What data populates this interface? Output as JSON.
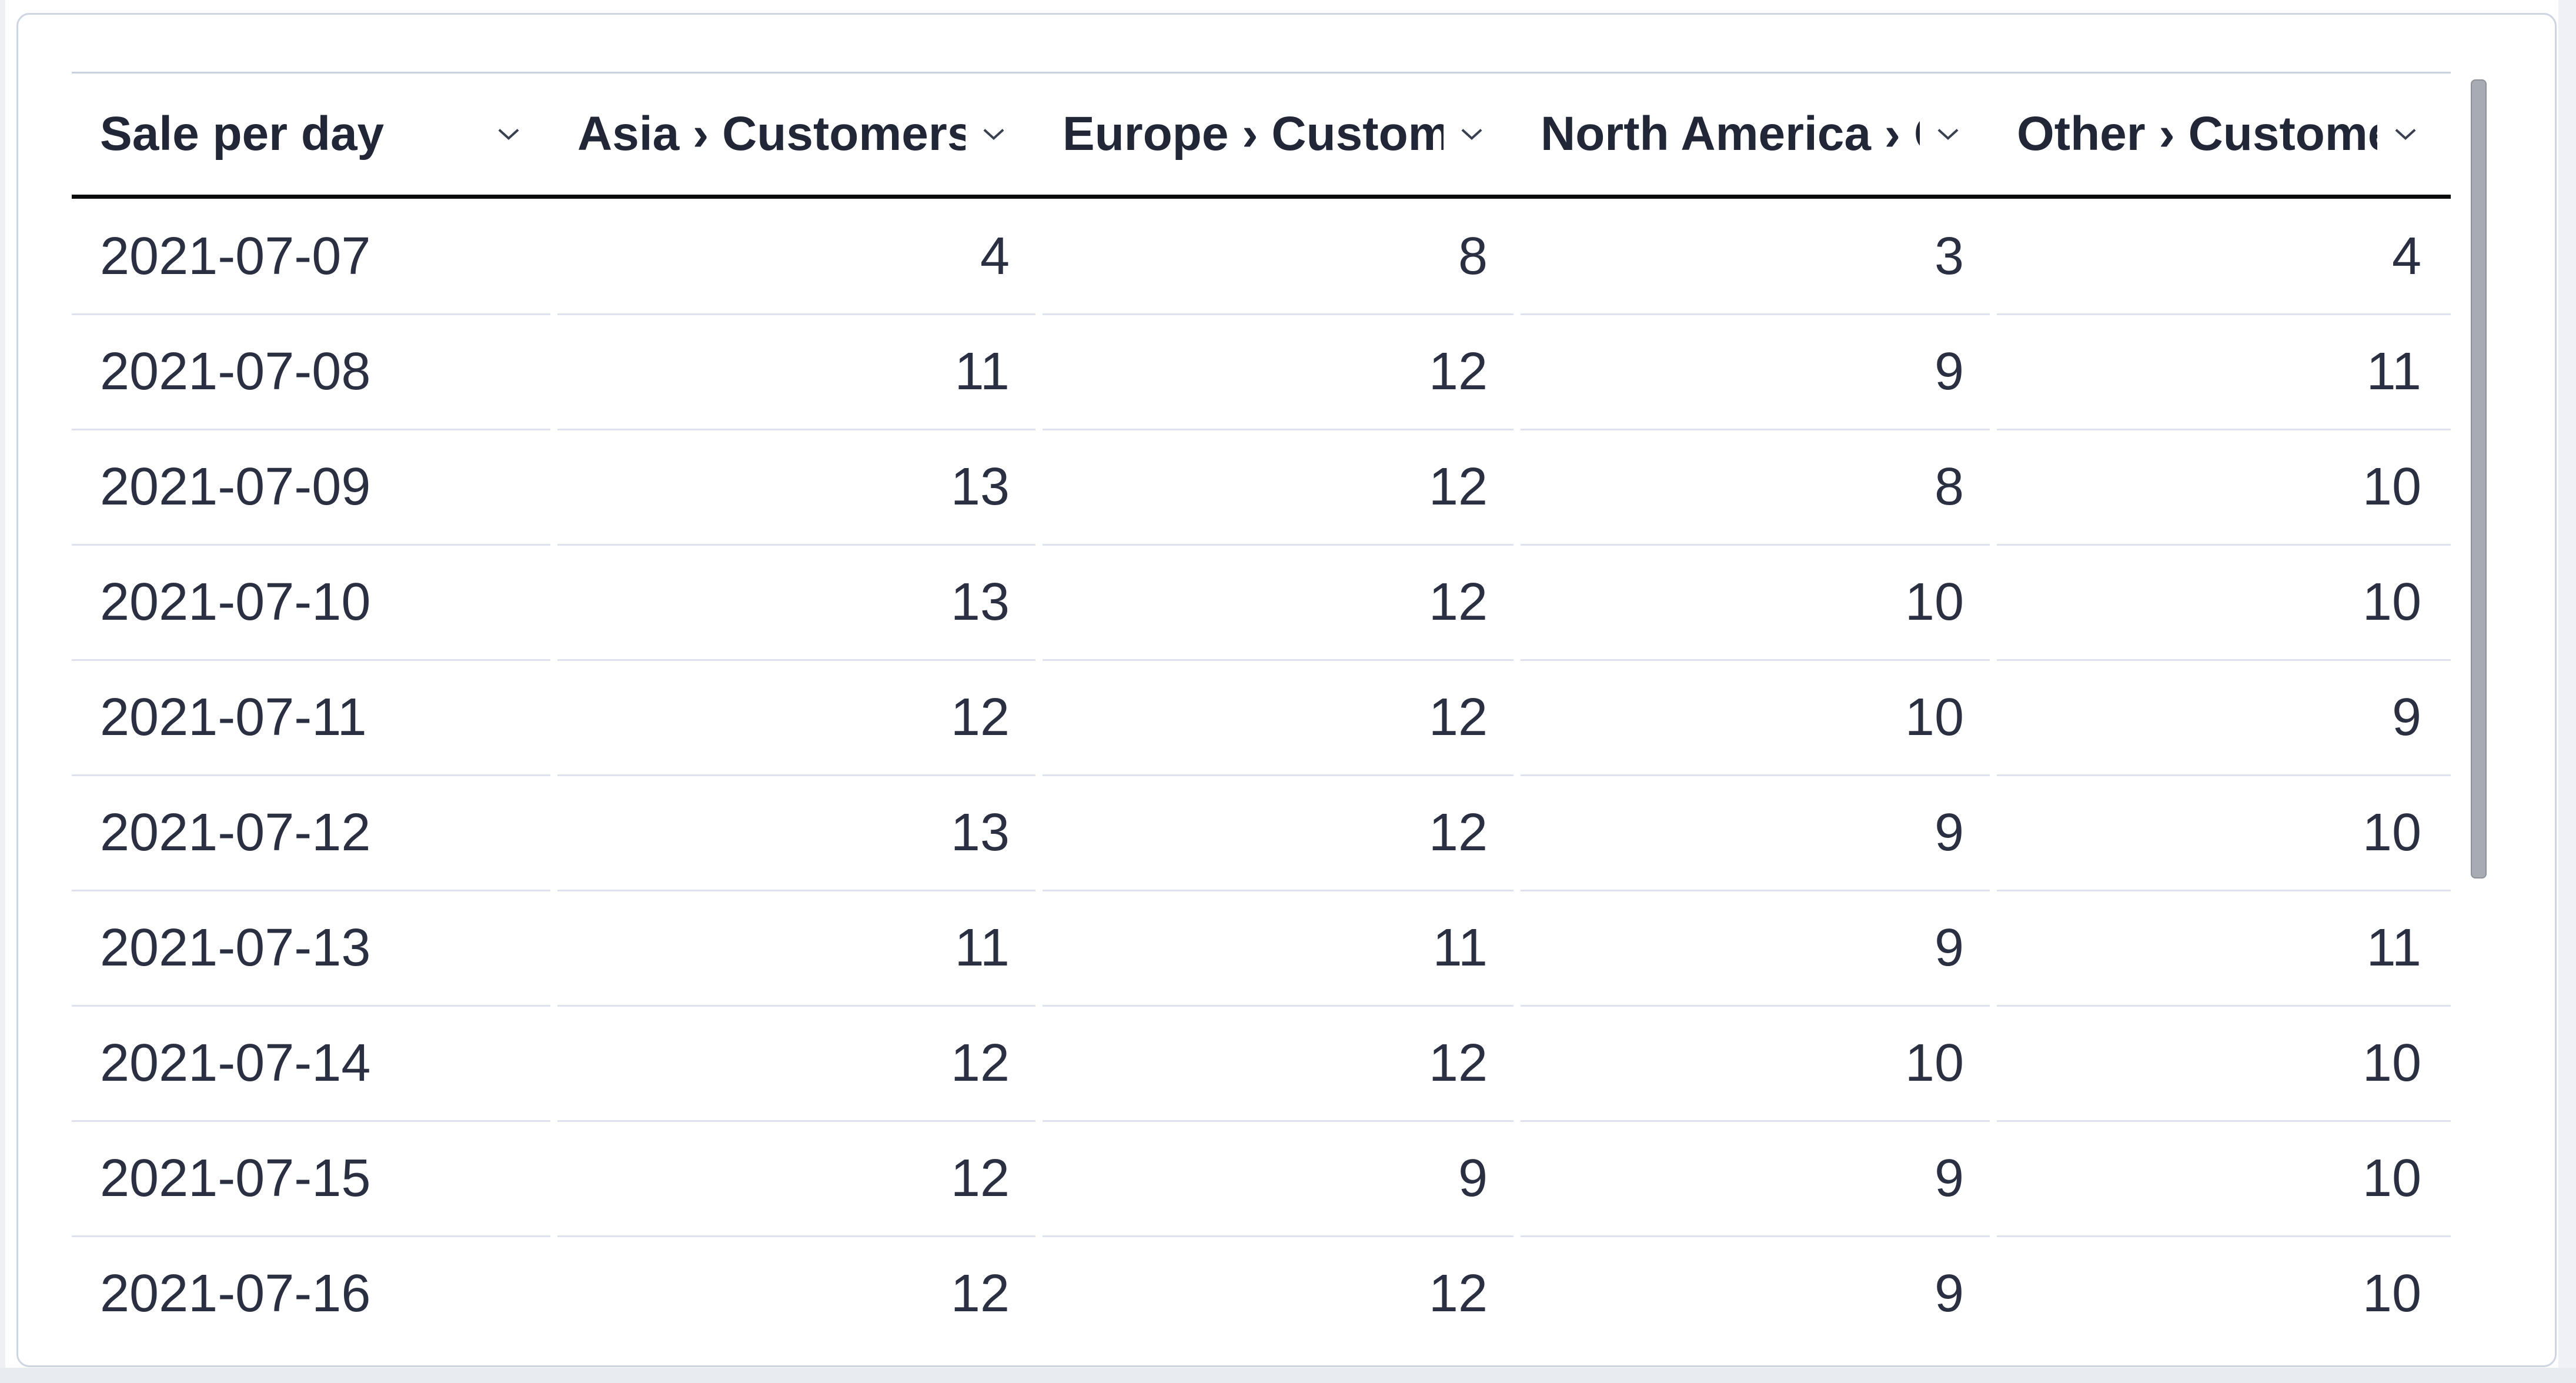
{
  "card": {
    "component": "question-result-table"
  },
  "table": {
    "columns": [
      {
        "label": "Sale per day",
        "align": "left"
      },
      {
        "label": "Asia › Customers",
        "align": "right"
      },
      {
        "label": "Europe › Customers",
        "align": "right"
      },
      {
        "label": "North America › Customers",
        "align": "right"
      },
      {
        "label": "Other › Customers",
        "align": "right"
      }
    ],
    "rows": [
      [
        "2021-07-07",
        "4",
        "8",
        "3",
        "4"
      ],
      [
        "2021-07-08",
        "11",
        "12",
        "9",
        "11"
      ],
      [
        "2021-07-09",
        "13",
        "12",
        "8",
        "10"
      ],
      [
        "2021-07-10",
        "13",
        "12",
        "10",
        "10"
      ],
      [
        "2021-07-11",
        "12",
        "12",
        "10",
        "9"
      ],
      [
        "2021-07-12",
        "13",
        "12",
        "9",
        "10"
      ],
      [
        "2021-07-13",
        "11",
        "11",
        "9",
        "11"
      ],
      [
        "2021-07-14",
        "12",
        "12",
        "10",
        "10"
      ],
      [
        "2021-07-15",
        "12",
        "9",
        "9",
        "10"
      ],
      [
        "2021-07-16",
        "12",
        "12",
        "9",
        "10"
      ]
    ]
  },
  "icons": {
    "column_menu": "chevron-down-icon"
  },
  "scrollbar": {
    "visible": true
  },
  "colors": {
    "header_text": "#222738",
    "cell_text": "#2a2f42",
    "header_rule": "#0a0b0d",
    "table_top_border": "#c8d1e0",
    "row_divider": "#dde3ee",
    "card_border": "#cdd5e1",
    "scrollbar_thumb": "#a7acb3"
  }
}
